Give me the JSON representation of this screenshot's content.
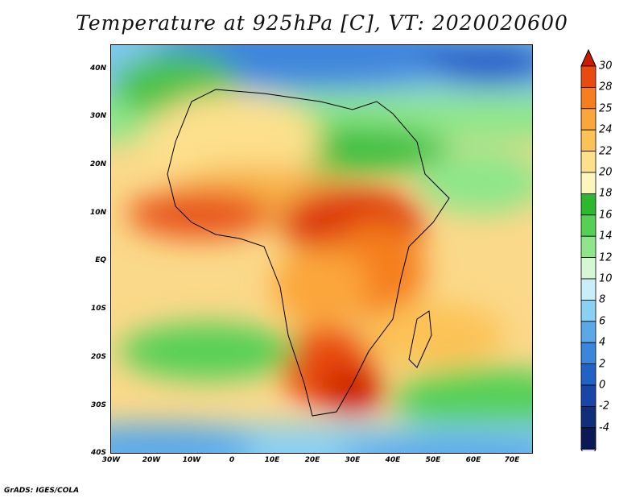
{
  "title": "Temperature at 925hPa [C], VT: 2020020600",
  "footer": "GrADS: IGES/COLA",
  "map": {
    "lat_labels": [
      "40N",
      "30N",
      "20N",
      "10N",
      "EQ",
      "10S",
      "20S",
      "30S",
      "40S"
    ],
    "lon_labels": [
      "30W",
      "20W",
      "10W",
      "0",
      "10E",
      "20E",
      "30E",
      "40E",
      "50E",
      "60E",
      "70E"
    ]
  },
  "colorbar": {
    "labels": [
      "30",
      "28",
      "25",
      "24",
      "22",
      "20",
      "18",
      "16",
      "14",
      "12",
      "10",
      "8",
      "6",
      "4",
      "2",
      "0",
      "-2",
      "-4"
    ],
    "colors": [
      "#cc1a00",
      "#e84a10",
      "#f57e1e",
      "#fba63a",
      "#fcc257",
      "#fde08c",
      "#fbf6bd",
      "#2eb82e",
      "#55d055",
      "#8fe68a",
      "#d6f7d6",
      "#c9eef8",
      "#8ad0f2",
      "#5aa8e8",
      "#3a86dd",
      "#2261c6",
      "#1945a8",
      "#102e7a",
      "#0a1a55",
      "#dcd8ff"
    ]
  }
}
